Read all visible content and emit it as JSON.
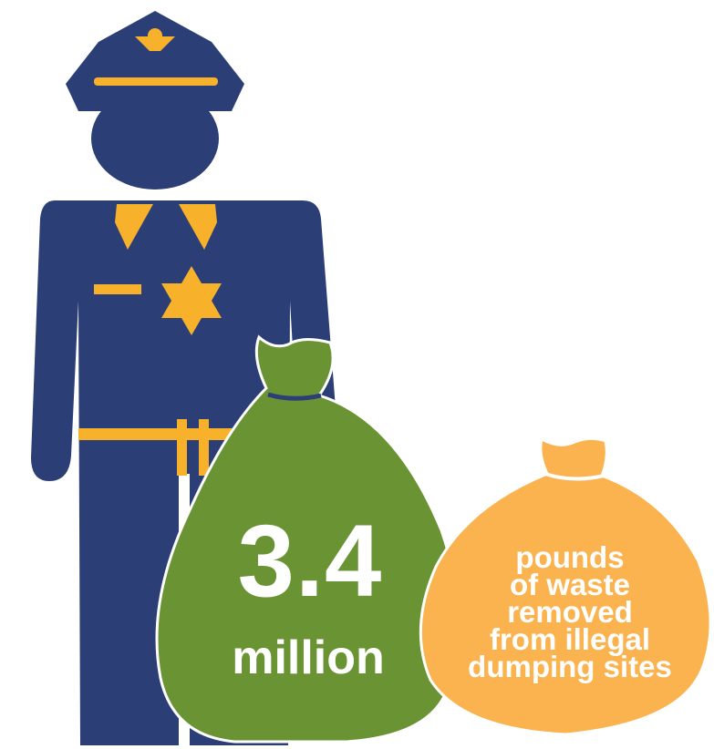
{
  "stat": {
    "number": "3.4",
    "unit": "million",
    "description_lines": [
      "pounds",
      "of waste",
      "removed",
      "from illegal",
      "dumping sites"
    ]
  },
  "colors": {
    "officer_navy": "#2b3e75",
    "accent_gold": "#f7b12b",
    "bag_green": "#6a9434",
    "bag_orange": "#fbb34f",
    "text": "#ffffff"
  },
  "icons": [
    "police-officer-icon",
    "police-cap-icon",
    "police-badge-icon",
    "waste-bag-icon"
  ]
}
